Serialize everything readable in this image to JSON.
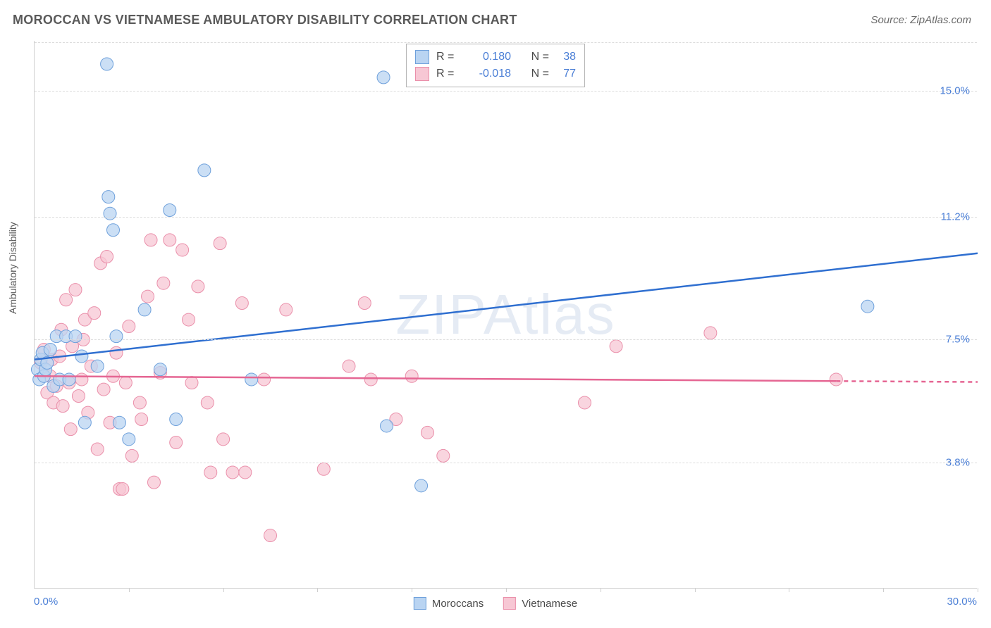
{
  "header": {
    "title": "MOROCCAN VS VIETNAMESE AMBULATORY DISABILITY CORRELATION CHART",
    "source": "Source: ZipAtlas.com"
  },
  "watermark": "ZIPAtlas",
  "chart": {
    "type": "scatter",
    "y_axis_label": "Ambulatory Disability",
    "xlim": [
      0,
      30
    ],
    "ylim": [
      0,
      16.5
    ],
    "x_start_label": "0.0%",
    "x_end_label": "30.0%",
    "y_ticks": [
      {
        "value": 15.0,
        "label": "15.0%"
      },
      {
        "value": 11.2,
        "label": "11.2%"
      },
      {
        "value": 7.5,
        "label": "7.5%"
      },
      {
        "value": 3.8,
        "label": "3.8%"
      }
    ],
    "x_tick_positions": [
      3,
      6,
      9,
      12,
      15,
      18,
      21,
      24,
      27,
      30
    ],
    "background_color": "#ffffff",
    "grid_color": "#dcdcdc",
    "axis_color": "#cfcfcf",
    "marker_radius": 9,
    "marker_stroke_width": 1,
    "trendline_width": 2.5
  },
  "series": {
    "moroccans": {
      "label": "Moroccans",
      "fill_color": "#b9d4f2",
      "stroke_color": "#6ea0db",
      "trend_color": "#2f6fd0",
      "R": "0.180",
      "N": "38",
      "trendline": {
        "x1": 0,
        "y1": 6.9,
        "x2": 30,
        "y2": 10.1
      },
      "points": [
        [
          0.1,
          6.6
        ],
        [
          0.15,
          6.3
        ],
        [
          0.2,
          6.9
        ],
        [
          0.25,
          7.1
        ],
        [
          0.3,
          6.4
        ],
        [
          0.35,
          6.6
        ],
        [
          0.4,
          6.8
        ],
        [
          0.5,
          7.2
        ],
        [
          0.6,
          6.1
        ],
        [
          0.7,
          7.6
        ],
        [
          0.8,
          6.3
        ],
        [
          1.0,
          7.6
        ],
        [
          1.1,
          6.3
        ],
        [
          1.3,
          7.6
        ],
        [
          1.5,
          7.0
        ],
        [
          1.6,
          5.0
        ],
        [
          2.0,
          6.7
        ],
        [
          2.3,
          15.8
        ],
        [
          2.35,
          11.8
        ],
        [
          2.4,
          11.3
        ],
        [
          2.5,
          10.8
        ],
        [
          2.6,
          7.6
        ],
        [
          2.7,
          5.0
        ],
        [
          3.0,
          4.5
        ],
        [
          3.5,
          8.4
        ],
        [
          4.0,
          6.6
        ],
        [
          4.3,
          11.4
        ],
        [
          4.5,
          5.1
        ],
        [
          5.4,
          12.6
        ],
        [
          6.9,
          6.3
        ],
        [
          11.1,
          15.4
        ],
        [
          11.2,
          4.9
        ],
        [
          12.3,
          3.1
        ],
        [
          26.5,
          8.5
        ]
      ]
    },
    "vietnamese": {
      "label": "Vietnamese",
      "fill_color": "#f7c7d4",
      "stroke_color": "#ea8faa",
      "trend_color": "#e56693",
      "R": "-0.018",
      "N": "77",
      "trendline": {
        "x1": 0,
        "y1": 6.4,
        "x2": 25.5,
        "y2": 6.25,
        "dash_to_x": 30
      },
      "points": [
        [
          0.2,
          6.8
        ],
        [
          0.3,
          7.2
        ],
        [
          0.4,
          5.9
        ],
        [
          0.5,
          6.4
        ],
        [
          0.55,
          6.9
        ],
        [
          0.6,
          5.6
        ],
        [
          0.7,
          6.1
        ],
        [
          0.8,
          7.0
        ],
        [
          0.85,
          7.8
        ],
        [
          0.9,
          5.5
        ],
        [
          1.0,
          8.7
        ],
        [
          1.1,
          6.2
        ],
        [
          1.15,
          4.8
        ],
        [
          1.2,
          7.3
        ],
        [
          1.3,
          9.0
        ],
        [
          1.4,
          5.8
        ],
        [
          1.5,
          6.3
        ],
        [
          1.55,
          7.5
        ],
        [
          1.6,
          8.1
        ],
        [
          1.7,
          5.3
        ],
        [
          1.8,
          6.7
        ],
        [
          1.9,
          8.3
        ],
        [
          2.0,
          4.2
        ],
        [
          2.1,
          9.8
        ],
        [
          2.2,
          6.0
        ],
        [
          2.3,
          10.0
        ],
        [
          2.4,
          5.0
        ],
        [
          2.5,
          6.4
        ],
        [
          2.6,
          7.1
        ],
        [
          2.7,
          3.0
        ],
        [
          2.8,
          3.0
        ],
        [
          2.9,
          6.2
        ],
        [
          3.0,
          7.9
        ],
        [
          3.1,
          4.0
        ],
        [
          3.35,
          5.6
        ],
        [
          3.4,
          5.1
        ],
        [
          3.6,
          8.8
        ],
        [
          3.7,
          10.5
        ],
        [
          3.8,
          3.2
        ],
        [
          4.0,
          6.5
        ],
        [
          4.1,
          9.2
        ],
        [
          4.3,
          10.5
        ],
        [
          4.5,
          4.4
        ],
        [
          4.7,
          10.2
        ],
        [
          4.9,
          8.1
        ],
        [
          5.0,
          6.2
        ],
        [
          5.2,
          9.1
        ],
        [
          5.5,
          5.6
        ],
        [
          5.6,
          3.5
        ],
        [
          5.9,
          10.4
        ],
        [
          6.0,
          4.5
        ],
        [
          6.3,
          3.5
        ],
        [
          6.6,
          8.6
        ],
        [
          6.7,
          3.5
        ],
        [
          7.3,
          6.3
        ],
        [
          7.5,
          1.6
        ],
        [
          8.0,
          8.4
        ],
        [
          9.2,
          3.6
        ],
        [
          10.0,
          6.7
        ],
        [
          10.5,
          8.6
        ],
        [
          10.7,
          6.3
        ],
        [
          11.5,
          5.1
        ],
        [
          12.0,
          6.4
        ],
        [
          12.5,
          4.7
        ],
        [
          13.0,
          4.0
        ],
        [
          17.5,
          5.6
        ],
        [
          18.5,
          7.3
        ],
        [
          21.5,
          7.7
        ],
        [
          25.5,
          6.3
        ]
      ]
    }
  },
  "legend_top": {
    "r_prefix": "R =",
    "n_prefix": "N ="
  },
  "legend_bottom": {
    "items": [
      "moroccans",
      "vietnamese"
    ]
  }
}
